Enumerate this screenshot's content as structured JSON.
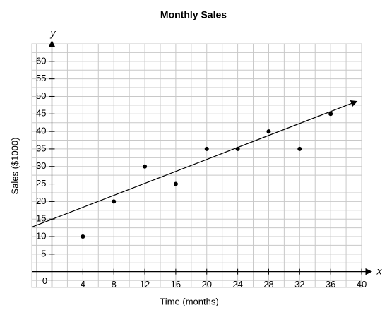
{
  "chart_data": {
    "type": "scatter",
    "title": "Monthly Sales",
    "x_label": "Time (months)",
    "y_label": "Sales ($1000)",
    "x_axis_name": "x",
    "y_axis_name": "y",
    "series": [
      {
        "name": "Sales",
        "color": "#000000",
        "x": [
          4,
          8,
          12,
          16,
          20,
          24,
          28,
          32,
          36
        ],
        "values": [
          10,
          20,
          30,
          25,
          35,
          35,
          40,
          35,
          45
        ]
      }
    ],
    "trend_line": {
      "color": "#000000",
      "x": [
        -2.6,
        39.4
      ],
      "values": [
        12.7,
        48.6
      ]
    },
    "xlim": [
      -2.6,
      40
    ],
    "ylim": [
      -4.5,
      65
    ],
    "xticks": [
      0,
      4,
      8,
      12,
      16,
      20,
      24,
      28,
      32,
      36,
      40
    ],
    "yticks": [
      5,
      10,
      15,
      20,
      25,
      30,
      35,
      40,
      45,
      50,
      55,
      60
    ],
    "grid": true
  }
}
